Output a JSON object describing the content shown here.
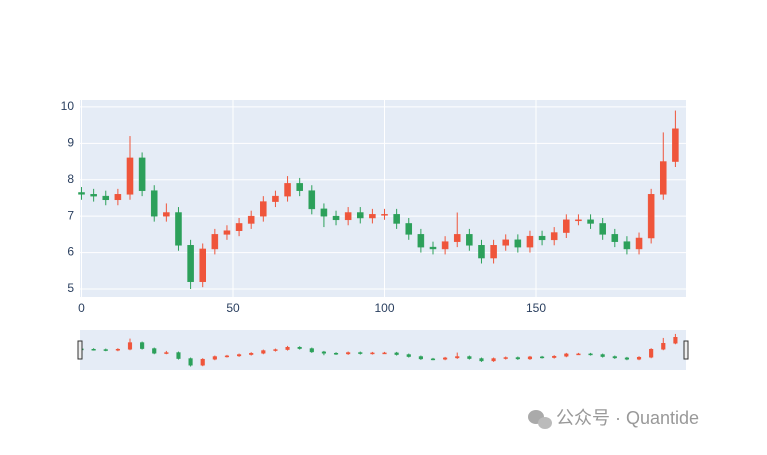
{
  "chart_data": {
    "type": "candlestick",
    "x": [
      0,
      4,
      8,
      12,
      16,
      20,
      24,
      28,
      32,
      36,
      40,
      44,
      48,
      52,
      56,
      60,
      64,
      68,
      72,
      76,
      80,
      84,
      88,
      92,
      96,
      100,
      104,
      108,
      112,
      116,
      120,
      124,
      128,
      132,
      136,
      140,
      144,
      148,
      152,
      156,
      160,
      164,
      168,
      172,
      176,
      180,
      184,
      188,
      192,
      196
    ],
    "open": [
      7.65,
      7.6,
      7.55,
      7.45,
      7.6,
      8.6,
      7.7,
      7.0,
      7.1,
      6.2,
      5.2,
      6.1,
      6.5,
      6.6,
      6.8,
      7.0,
      7.4,
      7.55,
      7.9,
      7.7,
      7.2,
      7.0,
      6.9,
      7.1,
      6.95,
      7.05,
      7.05,
      6.8,
      6.5,
      6.15,
      6.1,
      6.3,
      6.5,
      6.2,
      5.85,
      6.2,
      6.35,
      6.15,
      6.45,
      6.35,
      6.55,
      6.9,
      6.9,
      6.8,
      6.5,
      6.3,
      6.1,
      6.4,
      7.6,
      8.5
    ],
    "high": [
      7.8,
      7.75,
      7.7,
      7.75,
      9.2,
      8.75,
      7.85,
      7.35,
      7.25,
      6.35,
      6.25,
      6.65,
      6.75,
      6.95,
      7.15,
      7.55,
      7.7,
      8.1,
      8.05,
      7.85,
      7.35,
      7.15,
      7.25,
      7.25,
      7.2,
      7.2,
      7.2,
      6.95,
      6.65,
      6.3,
      6.45,
      7.1,
      6.65,
      6.35,
      6.35,
      6.5,
      6.5,
      6.6,
      6.6,
      6.7,
      7.05,
      7.05,
      7.05,
      6.95,
      6.65,
      6.45,
      6.55,
      7.75,
      9.3,
      9.9
    ],
    "low": [
      7.45,
      7.4,
      7.3,
      7.3,
      7.45,
      7.55,
      6.85,
      6.85,
      6.05,
      5.0,
      5.05,
      5.95,
      6.35,
      6.45,
      6.65,
      6.85,
      7.25,
      7.4,
      7.55,
      7.05,
      6.7,
      6.75,
      6.75,
      6.8,
      6.8,
      6.9,
      6.65,
      6.35,
      6.0,
      5.95,
      5.95,
      6.15,
      6.05,
      5.7,
      5.7,
      6.05,
      6.0,
      6.0,
      6.2,
      6.2,
      6.4,
      6.75,
      6.65,
      6.35,
      6.15,
      5.95,
      5.95,
      6.25,
      7.45,
      8.35
    ],
    "close": [
      7.6,
      7.55,
      7.45,
      7.6,
      8.6,
      7.7,
      7.0,
      7.1,
      6.2,
      5.2,
      6.1,
      6.5,
      6.6,
      6.8,
      7.0,
      7.4,
      7.55,
      7.9,
      7.7,
      7.2,
      7.0,
      6.9,
      7.1,
      6.95,
      7.05,
      7.05,
      6.8,
      6.5,
      6.15,
      6.1,
      6.3,
      6.5,
      6.2,
      5.85,
      6.2,
      6.35,
      6.15,
      6.45,
      6.35,
      6.55,
      6.9,
      6.9,
      6.8,
      6.5,
      6.3,
      6.1,
      6.4,
      7.6,
      8.5,
      9.4
    ],
    "increasing_color": "#ef553b",
    "decreasing_color": "#2ca05a",
    "xlim": [
      -0.5,
      199.5
    ],
    "xticks": [
      0,
      50,
      100,
      150
    ],
    "ylim": [
      4.78,
      10.19
    ],
    "yticks": [
      5,
      6,
      7,
      8,
      9,
      10
    ],
    "grid": true,
    "rangeslider": true
  },
  "watermark": "公众号 · Quantide"
}
